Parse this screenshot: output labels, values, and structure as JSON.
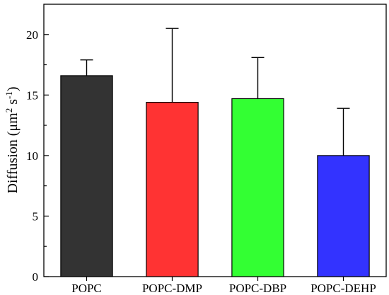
{
  "chart_data": {
    "type": "bar",
    "title": "",
    "xlabel": "",
    "ylabel": "Diffusion (μm² s⁻¹)",
    "ylabel_parts": {
      "main": "Diffusion (μm",
      "sup1": "2",
      "mid": " s",
      "sup2": "-1",
      "end": ")"
    },
    "categories": [
      "POPC",
      "POPC-DMP",
      "POPC-DBP",
      "POPC-DEHP"
    ],
    "values": [
      16.6,
      14.4,
      14.7,
      10.0
    ],
    "errors": [
      1.3,
      6.1,
      3.4,
      3.9
    ],
    "colors": [
      "#333333",
      "#ff3333",
      "#33ff33",
      "#3333ff"
    ],
    "ylim": [
      0,
      22.5
    ],
    "yticks": [
      0,
      5,
      10,
      15,
      20
    ],
    "grid": false,
    "legend": "none"
  }
}
